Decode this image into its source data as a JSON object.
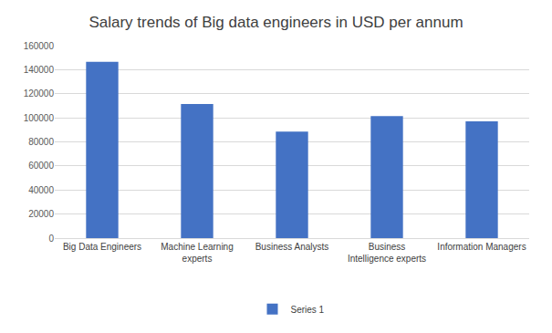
{
  "chart_data": {
    "type": "bar",
    "title": "Salary trends of Big data engineers in USD per annum",
    "categories": [
      "Big Data Engineers",
      "Machine Learning experts",
      "Business Analysts",
      "Business Intelligence experts",
      "Information Managers"
    ],
    "series": [
      {
        "name": "Series 1",
        "color": "#4472c4",
        "values": [
          146500,
          111500,
          88500,
          101500,
          97000
        ]
      }
    ],
    "ylim": [
      0,
      160000
    ],
    "yticks": [
      0,
      20000,
      40000,
      60000,
      80000,
      100000,
      120000,
      140000,
      160000
    ],
    "grid": true,
    "legend": "bottom"
  }
}
